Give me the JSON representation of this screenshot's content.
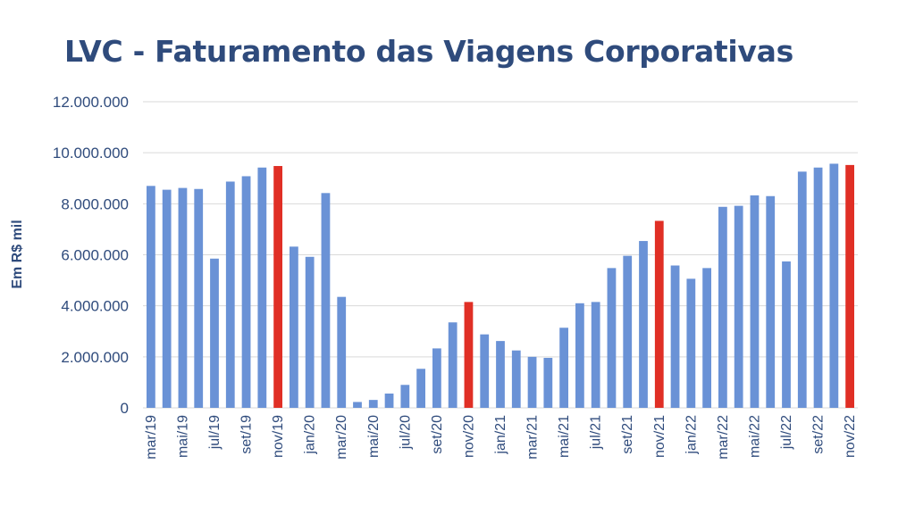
{
  "chart_data": {
    "type": "bar",
    "title": "LVC - Faturamento das Viagens Corporativas",
    "ylabel": "Em R$ mil",
    "xlabel": "",
    "ylim": [
      0,
      12000000
    ],
    "yticks": [
      0,
      2000000,
      4000000,
      6000000,
      8000000,
      10000000,
      12000000
    ],
    "ytick_labels": [
      "0",
      "2.000.000",
      "4.000.000",
      "6.000.000",
      "8.000.000",
      "10.000.000",
      "12.000.000"
    ],
    "grid": true,
    "legend": "none",
    "colors": {
      "default": "#6a92d6",
      "highlight": "#e02f25",
      "grid": "#d9d9d9",
      "text": "#2f4b7c"
    },
    "categories": [
      "mar/19",
      "abr/19",
      "mai/19",
      "jun/19",
      "jul/19",
      "ago/19",
      "set/19",
      "out/19",
      "nov/19",
      "dez/19",
      "jan/20",
      "fev/20",
      "mar/20",
      "abr/20",
      "mai/20",
      "jun/20",
      "jul/20",
      "ago/20",
      "set/20",
      "out/20",
      "nov/20",
      "dez/20",
      "jan/21",
      "fev/21",
      "mar/21",
      "abr/21",
      "mai/21",
      "jun/21",
      "jul/21",
      "ago/21",
      "set/21",
      "out/21",
      "nov/21",
      "dez/21",
      "jan/22",
      "fev/22",
      "mar/22",
      "abr/22",
      "mai/22",
      "jun/22",
      "jul/22",
      "ago/22",
      "set/22",
      "out/22",
      "nov/22"
    ],
    "visible_tick_labels": [
      "mar/19",
      "mai/19",
      "jul/19",
      "set/19",
      "nov/19",
      "jan/20",
      "mar/20",
      "mai/20",
      "jul/20",
      "set/20",
      "nov/20",
      "jan/21",
      "mar/21",
      "mai/21",
      "jul/21",
      "set/21",
      "nov/21",
      "jan/22",
      "mar/22",
      "mai/22",
      "jul/22",
      "set/22",
      "nov/22"
    ],
    "values": [
      8700000,
      8550000,
      8620000,
      8580000,
      5850000,
      8870000,
      9080000,
      9420000,
      9480000,
      6320000,
      5920000,
      8420000,
      4350000,
      230000,
      310000,
      560000,
      900000,
      1530000,
      2330000,
      3350000,
      4150000,
      2880000,
      2620000,
      2250000,
      2000000,
      1960000,
      3140000,
      4100000,
      4150000,
      5480000,
      5960000,
      6540000,
      7330000,
      5580000,
      5060000,
      5480000,
      7880000,
      7920000,
      8330000,
      8300000,
      5740000,
      9260000,
      9420000,
      9570000,
      9520000
    ],
    "highlighted": [
      "nov/19",
      "nov/20",
      "nov/21",
      "nov/22"
    ]
  }
}
